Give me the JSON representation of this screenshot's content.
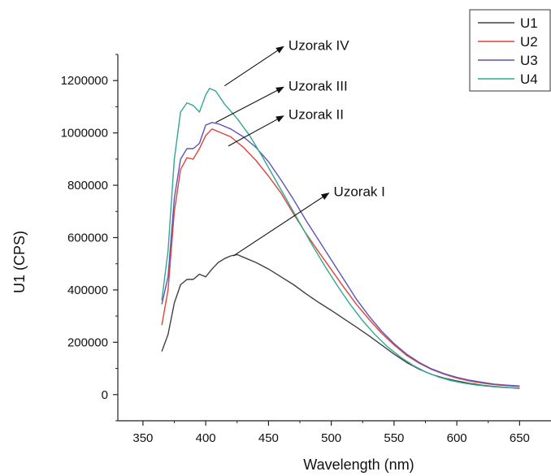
{
  "chart_data": {
    "type": "line",
    "xlabel": "Wavelength (nm)",
    "ylabel": "U1 (CPS)",
    "xlim": [
      330,
      675
    ],
    "ylim": [
      -100000,
      1300000
    ],
    "xticks": [
      350,
      400,
      450,
      500,
      550,
      600,
      650
    ],
    "yticks": [
      0,
      200000,
      400000,
      600000,
      800000,
      1000000,
      1200000
    ],
    "grid": false,
    "legend": "top-right",
    "series": [
      {
        "name": "U1",
        "color": "#404040",
        "points": [
          [
            365,
            165000
          ],
          [
            370,
            230000
          ],
          [
            375,
            350000
          ],
          [
            380,
            420000
          ],
          [
            385,
            440000
          ],
          [
            390,
            440000
          ],
          [
            395,
            460000
          ],
          [
            400,
            450000
          ],
          [
            405,
            480000
          ],
          [
            410,
            505000
          ],
          [
            415,
            520000
          ],
          [
            420,
            530000
          ],
          [
            425,
            535000
          ],
          [
            430,
            525000
          ],
          [
            440,
            505000
          ],
          [
            450,
            480000
          ],
          [
            460,
            450000
          ],
          [
            470,
            420000
          ],
          [
            480,
            385000
          ],
          [
            490,
            352000
          ],
          [
            500,
            322000
          ],
          [
            510,
            290000
          ],
          [
            520,
            258000
          ],
          [
            530,
            225000
          ],
          [
            540,
            190000
          ],
          [
            550,
            155000
          ],
          [
            560,
            123000
          ],
          [
            570,
            97000
          ],
          [
            580,
            77000
          ],
          [
            590,
            63000
          ],
          [
            600,
            52000
          ],
          [
            610,
            43000
          ],
          [
            620,
            36000
          ],
          [
            630,
            31000
          ],
          [
            640,
            27000
          ],
          [
            650,
            24000
          ]
        ]
      },
      {
        "name": "U2",
        "color": "#e0433a",
        "points": [
          [
            365,
            265000
          ],
          [
            370,
            400000
          ],
          [
            375,
            700000
          ],
          [
            380,
            860000
          ],
          [
            385,
            905000
          ],
          [
            390,
            900000
          ],
          [
            395,
            940000
          ],
          [
            400,
            990000
          ],
          [
            405,
            1015000
          ],
          [
            410,
            1005000
          ],
          [
            420,
            985000
          ],
          [
            430,
            945000
          ],
          [
            440,
            895000
          ],
          [
            450,
            835000
          ],
          [
            460,
            770000
          ],
          [
            470,
            690000
          ],
          [
            480,
            615000
          ],
          [
            490,
            545000
          ],
          [
            500,
            478000
          ],
          [
            510,
            410000
          ],
          [
            520,
            345000
          ],
          [
            530,
            288000
          ],
          [
            540,
            235000
          ],
          [
            550,
            190000
          ],
          [
            560,
            150000
          ],
          [
            570,
            120000
          ],
          [
            580,
            96000
          ],
          [
            590,
            78000
          ],
          [
            600,
            63000
          ],
          [
            610,
            52000
          ],
          [
            620,
            44000
          ],
          [
            630,
            38000
          ],
          [
            640,
            34000
          ],
          [
            650,
            31000
          ]
        ]
      },
      {
        "name": "U3",
        "color": "#5b54b8",
        "points": [
          [
            365,
            345000
          ],
          [
            370,
            450000
          ],
          [
            375,
            750000
          ],
          [
            380,
            900000
          ],
          [
            385,
            940000
          ],
          [
            390,
            940000
          ],
          [
            395,
            960000
          ],
          [
            400,
            1030000
          ],
          [
            405,
            1040000
          ],
          [
            410,
            1035000
          ],
          [
            420,
            1015000
          ],
          [
            430,
            985000
          ],
          [
            440,
            945000
          ],
          [
            450,
            890000
          ],
          [
            460,
            820000
          ],
          [
            470,
            745000
          ],
          [
            480,
            665000
          ],
          [
            490,
            590000
          ],
          [
            500,
            515000
          ],
          [
            510,
            440000
          ],
          [
            520,
            365000
          ],
          [
            530,
            300000
          ],
          [
            540,
            243000
          ],
          [
            550,
            195000
          ],
          [
            560,
            155000
          ],
          [
            570,
            123000
          ],
          [
            580,
            98000
          ],
          [
            590,
            80000
          ],
          [
            600,
            66000
          ],
          [
            610,
            55000
          ],
          [
            620,
            47000
          ],
          [
            630,
            40000
          ],
          [
            640,
            36000
          ],
          [
            650,
            33000
          ]
        ]
      },
      {
        "name": "U4",
        "color": "#2fa892",
        "points": [
          [
            365,
            360000
          ],
          [
            370,
            550000
          ],
          [
            375,
            900000
          ],
          [
            380,
            1080000
          ],
          [
            385,
            1115000
          ],
          [
            390,
            1105000
          ],
          [
            395,
            1080000
          ],
          [
            400,
            1145000
          ],
          [
            403,
            1170000
          ],
          [
            408,
            1160000
          ],
          [
            415,
            1110000
          ],
          [
            425,
            1055000
          ],
          [
            435,
            990000
          ],
          [
            445,
            910000
          ],
          [
            455,
            825000
          ],
          [
            465,
            740000
          ],
          [
            475,
            655000
          ],
          [
            485,
            570000
          ],
          [
            495,
            490000
          ],
          [
            505,
            415000
          ],
          [
            515,
            345000
          ],
          [
            525,
            282000
          ],
          [
            535,
            228000
          ],
          [
            545,
            182000
          ],
          [
            555,
            144000
          ],
          [
            565,
            112000
          ],
          [
            575,
            87000
          ],
          [
            585,
            68000
          ],
          [
            595,
            54000
          ],
          [
            605,
            44000
          ],
          [
            615,
            37000
          ],
          [
            625,
            32000
          ],
          [
            635,
            28000
          ],
          [
            650,
            25000
          ]
        ]
      }
    ],
    "annotations": [
      {
        "label": "Uzorak IV",
        "from": [
          415,
          1180000
        ],
        "to": [
          462,
          1330000
        ]
      },
      {
        "label": "Uzorak III",
        "from": [
          408,
          1040000
        ],
        "to": [
          462,
          1175000
        ]
      },
      {
        "label": "Uzorak II",
        "from": [
          418,
          950000
        ],
        "to": [
          462,
          1065000
        ]
      },
      {
        "label": "Uzorak I",
        "from": [
          422,
          530000
        ],
        "to": [
          498,
          770000
        ]
      }
    ]
  }
}
